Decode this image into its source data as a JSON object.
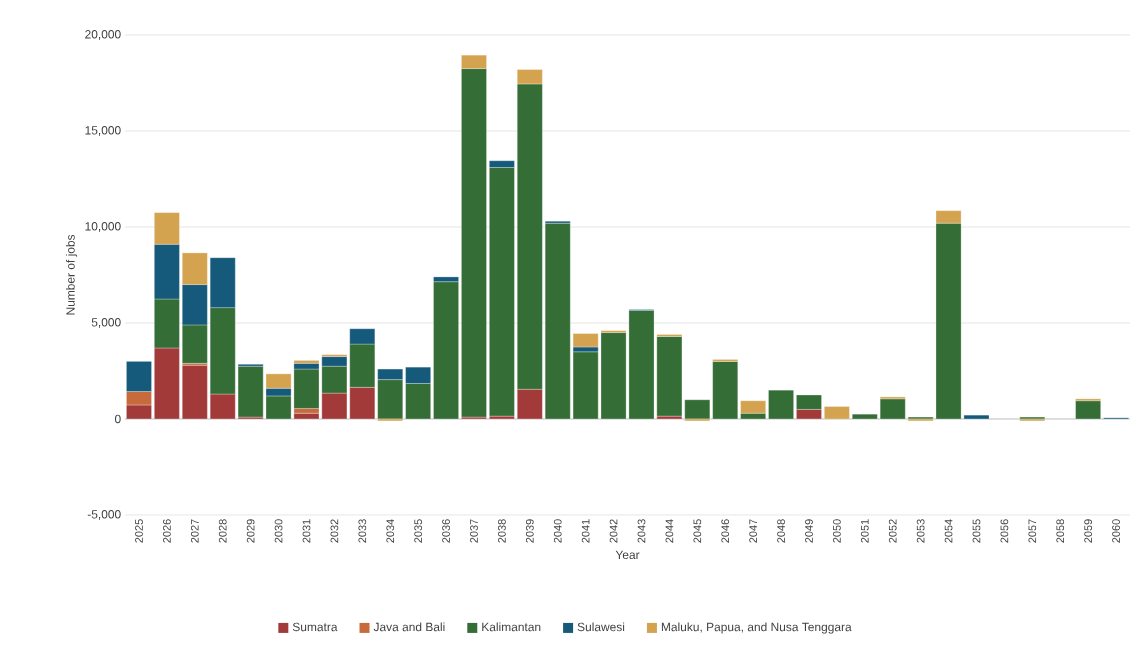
{
  "chart_data": {
    "type": "bar",
    "stacked": true,
    "xlabel": "Year",
    "ylabel": "Number of jobs",
    "categories": [
      "2025",
      "2026",
      "2027",
      "2028",
      "2029",
      "2030",
      "2031",
      "2032",
      "2033",
      "2034",
      "2035",
      "2036",
      "2037",
      "2038",
      "2039",
      "2040",
      "2041",
      "2042",
      "2043",
      "2044",
      "2045",
      "2046",
      "2047",
      "2048",
      "2049",
      "2050",
      "2051",
      "2052",
      "2053",
      "2054",
      "2055",
      "2056",
      "2057",
      "2058",
      "2059",
      "2060"
    ],
    "series": [
      {
        "name": "Sumatra",
        "color": "#a33a3a",
        "values": [
          730,
          3700,
          2800,
          1300,
          100,
          0,
          300,
          1350,
          1650,
          0,
          0,
          0,
          100,
          150,
          1550,
          0,
          0,
          0,
          0,
          150,
          0,
          0,
          0,
          0,
          500,
          0,
          0,
          0,
          0,
          0,
          0,
          0,
          0,
          0,
          0,
          0
        ]
      },
      {
        "name": "Java and Bali",
        "color": "#c76b3c",
        "values": [
          700,
          0,
          100,
          0,
          0,
          0,
          250,
          0,
          0,
          0,
          0,
          0,
          0,
          0,
          0,
          0,
          0,
          0,
          0,
          0,
          0,
          0,
          0,
          0,
          0,
          0,
          0,
          0,
          0,
          0,
          0,
          0,
          0,
          0,
          0,
          0
        ]
      },
      {
        "name": "Kalimantan",
        "color": "#346d35",
        "values": [
          0,
          2550,
          2000,
          4500,
          2650,
          1200,
          2050,
          1400,
          2250,
          2050,
          1850,
          7150,
          18150,
          12950,
          15900,
          10200,
          3500,
          4500,
          5650,
          4150,
          1000,
          3000,
          300,
          1500,
          750,
          0,
          250,
          1050,
          100,
          10200,
          0,
          0,
          100,
          0,
          950,
          0
        ]
      },
      {
        "name": "Sulawesi",
        "color": "#155a7a",
        "values": [
          1570,
          2850,
          2100,
          2600,
          100,
          400,
          300,
          500,
          800,
          550,
          850,
          250,
          0,
          350,
          0,
          100,
          250,
          0,
          50,
          0,
          0,
          0,
          0,
          0,
          0,
          0,
          0,
          0,
          0,
          0,
          200,
          0,
          0,
          0,
          0,
          60
        ]
      },
      {
        "name": "Maluku, Papua, and Nusa Tenggara",
        "color": "#d4a34f",
        "values": [
          0,
          1650,
          1650,
          0,
          0,
          750,
          150,
          100,
          0,
          -100,
          0,
          0,
          700,
          0,
          750,
          0,
          700,
          100,
          0,
          100,
          -100,
          100,
          650,
          0,
          0,
          650,
          0,
          100,
          -100,
          650,
          0,
          0,
          -100,
          0,
          100,
          0
        ]
      }
    ],
    "ylim": [
      -5000,
      20000
    ],
    "yticks": [
      {
        "value": -5000,
        "label": "-5,000"
      },
      {
        "value": 0,
        "label": "0"
      },
      {
        "value": 5000,
        "label": "5,000"
      },
      {
        "value": 10000,
        "label": "10,000"
      },
      {
        "value": 15000,
        "label": "15,000"
      },
      {
        "value": 20000,
        "label": "20,000"
      }
    ],
    "grid": "y",
    "legend": "bottom"
  }
}
